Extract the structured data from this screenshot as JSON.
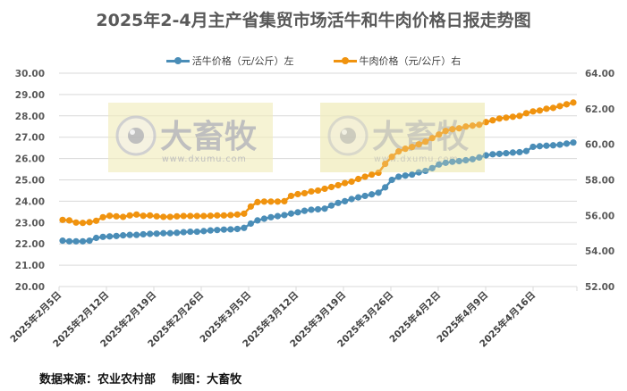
{
  "chart_data": {
    "type": "line",
    "title": "2025年2-4月主产省集贸市场活牛和牛肉价格日报走势图",
    "xlabel": "",
    "ylabel": "",
    "y_left": {
      "label": "活牛价格（元/公斤）",
      "ylim": [
        20,
        30
      ],
      "ticks": [
        "20.00",
        "21.00",
        "22.00",
        "23.00",
        "24.00",
        "25.00",
        "26.00",
        "27.00",
        "28.00",
        "29.00",
        "30.00"
      ]
    },
    "y_right": {
      "label": "牛肉价格（元/公斤）",
      "ylim": [
        52,
        64
      ],
      "ticks": [
        "52.00",
        "54.00",
        "56.00",
        "58.00",
        "60.00",
        "62.00",
        "64.00"
      ]
    },
    "x_tick_labels": [
      "2025年2月5日",
      "2025年2月12日",
      "2025年2月19日",
      "2025年2月26日",
      "2025年3月5日",
      "2025年3月12日",
      "2025年3月19日",
      "2025年3月26日",
      "2025年4月2日",
      "2025年4月9日",
      "2025年4月16日"
    ],
    "grid": true,
    "legend_position": "top",
    "x": [
      "2/5",
      "2/6",
      "2/7",
      "2/8",
      "2/9",
      "2/10",
      "2/11",
      "2/12",
      "2/13",
      "2/14",
      "2/15",
      "2/16",
      "2/17",
      "2/18",
      "2/19",
      "2/20",
      "2/21",
      "2/22",
      "2/23",
      "2/24",
      "2/25",
      "2/26",
      "2/27",
      "2/28",
      "3/1",
      "3/2",
      "3/3",
      "3/4",
      "3/5",
      "3/6",
      "3/7",
      "3/8",
      "3/9",
      "3/10",
      "3/11",
      "3/12",
      "3/13",
      "3/14",
      "3/15",
      "3/16",
      "3/17",
      "3/18",
      "3/19",
      "3/20",
      "3/21",
      "3/22",
      "3/23",
      "3/24",
      "3/25",
      "3/26",
      "3/27",
      "3/28",
      "3/29",
      "3/30",
      "3/31",
      "4/1",
      "4/2",
      "4/3",
      "4/4",
      "4/5",
      "4/6",
      "4/7",
      "4/8",
      "4/9",
      "4/10",
      "4/11",
      "4/12",
      "4/13",
      "4/14",
      "4/15",
      "4/16",
      "4/17",
      "4/18",
      "4/19",
      "4/20",
      "4/21",
      "4/22"
    ],
    "series": [
      {
        "name": "活牛价格（元/公斤）左",
        "axis": "left",
        "color": "#4a8db7",
        "values": [
          22.15,
          22.12,
          22.12,
          22.12,
          22.15,
          22.28,
          22.33,
          22.35,
          22.37,
          22.4,
          22.42,
          22.42,
          22.45,
          22.47,
          22.48,
          22.5,
          22.5,
          22.52,
          22.55,
          22.57,
          22.57,
          22.6,
          22.63,
          22.65,
          22.67,
          22.68,
          22.7,
          22.75,
          22.95,
          23.1,
          23.18,
          23.25,
          23.3,
          23.35,
          23.42,
          23.48,
          23.55,
          23.6,
          23.62,
          23.65,
          23.8,
          23.92,
          24.0,
          24.1,
          24.18,
          24.25,
          24.32,
          24.4,
          24.65,
          25.0,
          25.15,
          25.2,
          25.25,
          25.35,
          25.42,
          25.55,
          25.72,
          25.8,
          25.85,
          25.88,
          25.92,
          25.97,
          26.05,
          26.15,
          26.2,
          26.22,
          26.25,
          26.28,
          26.3,
          26.35,
          26.55,
          26.58,
          26.6,
          26.62,
          26.65,
          26.7,
          26.75
        ]
      },
      {
        "name": "牛肉价格（元/公斤）右",
        "axis": "right",
        "color": "#f0930f",
        "values": [
          55.75,
          55.72,
          55.6,
          55.58,
          55.62,
          55.7,
          55.9,
          55.98,
          55.95,
          55.92,
          56.0,
          56.05,
          55.98,
          56.0,
          55.95,
          55.92,
          55.92,
          55.95,
          55.97,
          55.97,
          55.97,
          55.97,
          55.98,
          56.0,
          56.0,
          56.02,
          56.05,
          56.1,
          56.5,
          56.75,
          56.78,
          56.78,
          56.78,
          56.8,
          57.1,
          57.2,
          57.25,
          57.35,
          57.4,
          57.5,
          57.6,
          57.7,
          57.82,
          57.9,
          58.05,
          58.18,
          58.3,
          58.4,
          58.9,
          59.3,
          59.6,
          59.75,
          59.85,
          60.0,
          60.15,
          60.35,
          60.55,
          60.75,
          60.85,
          60.9,
          61.0,
          61.05,
          61.1,
          61.25,
          61.35,
          61.45,
          61.5,
          61.55,
          61.6,
          61.75,
          61.85,
          61.9,
          62.0,
          62.05,
          62.15,
          62.25,
          62.35
        ]
      }
    ]
  },
  "header": {
    "title": "2025年2-4月主产省集贸市场活牛和牛肉价格日报走势图"
  },
  "legend": {
    "live_cattle": {
      "label": "活牛价格（元/公斤）左",
      "color": "#4a8db7"
    },
    "beef": {
      "label": "牛肉价格（元/公斤）右",
      "color": "#f0930f"
    }
  },
  "watermarks": [
    {
      "logo_text": "大畜牧",
      "url_text": "www.dxumu.com"
    },
    {
      "logo_text": "大畜牧",
      "url_text": "www.dxumu.com"
    }
  ],
  "footer": {
    "source": "数据来源：农业农村部    制图：大畜牧"
  }
}
